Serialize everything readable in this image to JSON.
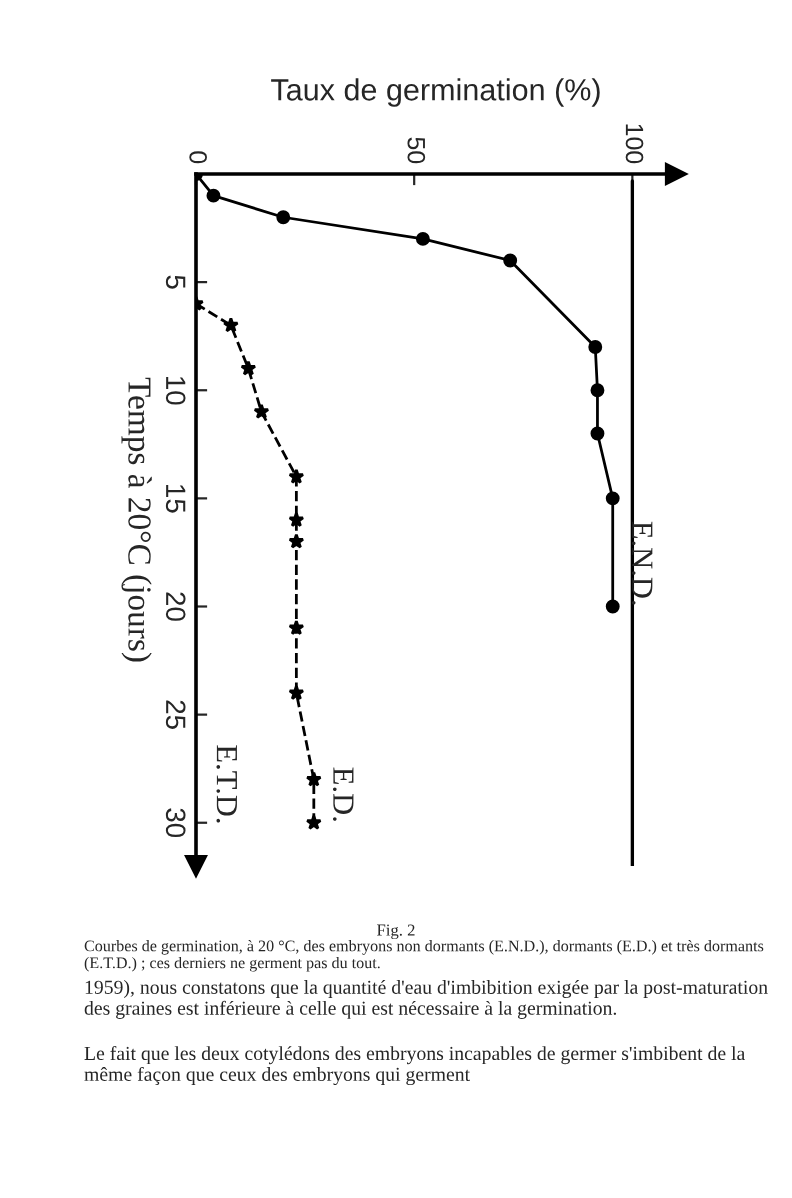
{
  "chart_data": {
    "type": "line",
    "xlabel": "Taux de germination (%)",
    "ylabel": "Temps à 20°C (jours)",
    "xlim": [
      0,
      110
    ],
    "xticks": [
      0,
      50,
      100
    ],
    "ylim": [
      32,
      0
    ],
    "yticks": [
      5,
      10,
      15,
      20,
      25,
      30
    ],
    "grid": false,
    "legend": false,
    "series": [
      {
        "name": "E.N.D.",
        "color": "#000000",
        "marker": "circle",
        "line_style": "solid",
        "x": [
          0,
          4,
          20,
          52,
          72,
          91.5,
          92,
          92,
          95.5,
          95.5
        ],
        "values": [
          0,
          1,
          2,
          3,
          4,
          8,
          10,
          12,
          15,
          20
        ]
      },
      {
        "name": "E.D.",
        "color": "#000000",
        "marker": "star",
        "line_style": "dashed",
        "x": [
          0,
          8,
          12,
          15,
          23,
          23,
          23,
          23,
          23,
          27,
          27
        ],
        "values": [
          6,
          7,
          9,
          11,
          14,
          16,
          17,
          21,
          24,
          28,
          30
        ]
      }
    ],
    "ref_lines": [
      {
        "axis": "x",
        "value": 100,
        "color": "#000000",
        "line_style": "solid"
      }
    ],
    "annotations": [
      "E.T.D.",
      "Fig. 2",
      "Courbes de germination, à 20 °C, des embryons non dormants (E.N.D.), dormants (E.D.) et très dormants (E.T.D.) ; ces derniers ne germent pas du tout.",
      "1959), nous constatons que la quantité d'eau d'imbibition exigée par la post-maturation des graines est inférieure à celle qui est nécessaire à la germination.",
      "Le fait que les deux cotylédons des embryons incapables de germer s'imbibent de la même façon que ceux des embryons qui germent"
    ]
  }
}
